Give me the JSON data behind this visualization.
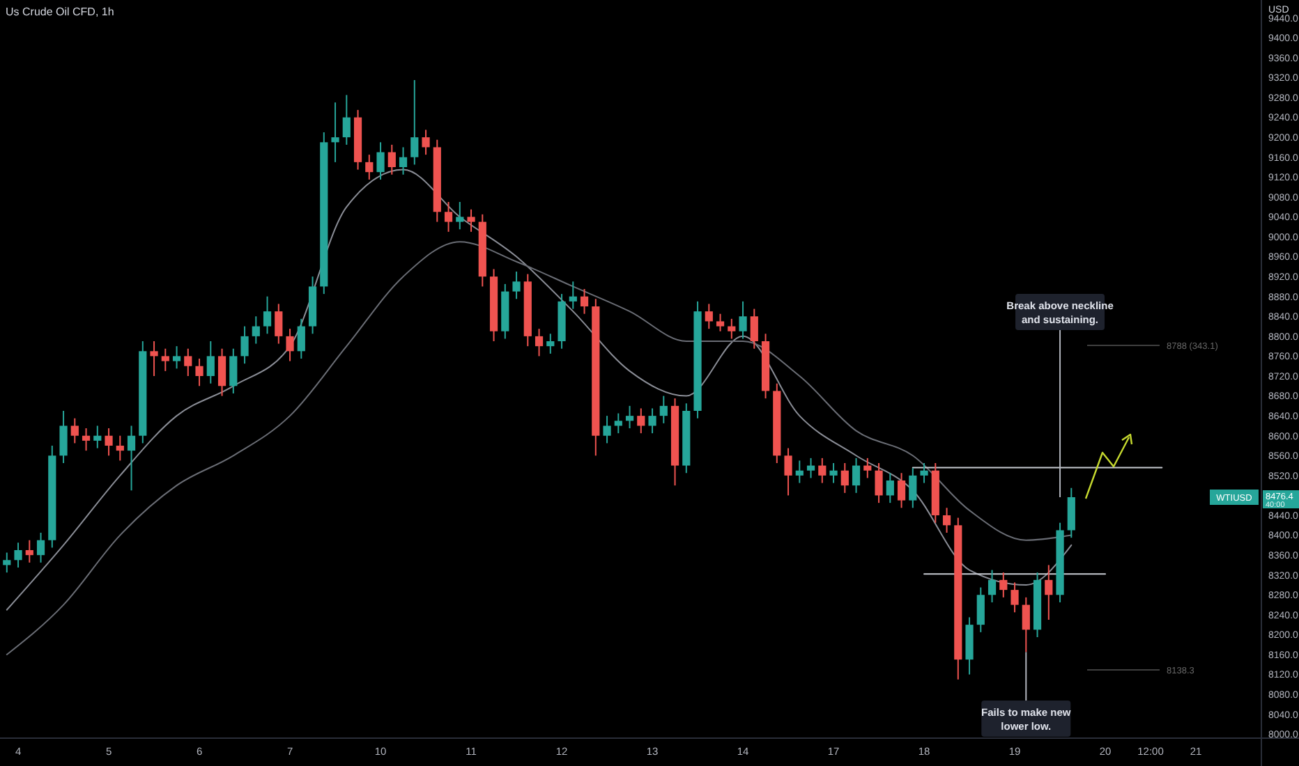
{
  "chart_data": {
    "type": "candlestick",
    "title": "Us Crude Oil CFD, 1h",
    "ylabel": "USD",
    "categories": [
      null,
      "4",
      null,
      null,
      null,
      null,
      null,
      null,
      null,
      "5",
      null,
      null,
      null,
      null,
      null,
      null,
      null,
      "6",
      null,
      null,
      null,
      null,
      null,
      null,
      null,
      "7",
      null,
      null,
      null,
      null,
      null,
      null,
      null,
      "10",
      null,
      null,
      null,
      null,
      null,
      null,
      null,
      "11",
      null,
      null,
      null,
      null,
      null,
      null,
      null,
      "12",
      null,
      null,
      null,
      null,
      null,
      null,
      null,
      "13",
      null,
      null,
      null,
      null,
      null,
      null,
      null,
      "14",
      null,
      null,
      null,
      null,
      null,
      null,
      null,
      "17",
      null,
      null,
      null,
      null,
      null,
      null,
      null,
      "18",
      null,
      null,
      null,
      null,
      null,
      null,
      null,
      "19",
      null,
      null,
      null,
      null,
      null,
      null,
      null,
      "20",
      null,
      null,
      null,
      "12:00",
      null,
      null,
      null,
      "21",
      null,
      null,
      null,
      null,
      null
    ],
    "colors": [
      "#26a69a",
      "#26a69a",
      "#ef5350",
      "#26a69a",
      "#26a69a",
      "#26a69a",
      "#ef5350",
      "#ef5350",
      "#26a69a",
      "#ef5350",
      "#ef5350",
      "#26a69a",
      "#26a69a",
      "#ef5350",
      "#ef5350",
      "#26a69a",
      "#ef5350",
      "#ef5350",
      "#26a69a",
      "#ef5350",
      "#26a69a",
      "#26a69a",
      "#26a69a",
      "#26a69a",
      "#ef5350",
      "#ef5350",
      "#26a69a",
      "#26a69a",
      "#26a69a",
      "#26a69a",
      "#26a69a",
      "#ef5350",
      "#ef5350",
      "#26a69a",
      "#ef5350",
      "#26a69a",
      "#26a69a",
      "#ef5350",
      "#ef5350",
      "#ef5350",
      "#26a69a",
      "#ef5350",
      "#ef5350",
      "#ef5350",
      "#26a69a",
      "#26a69a",
      "#ef5350",
      "#ef5350",
      "#26a69a",
      "#26a69a",
      "#26a69a",
      "#ef5350",
      "#ef5350",
      "#26a69a",
      "#26a69a",
      "#26a69a",
      "#ef5350",
      "#26a69a",
      "#26a69a",
      "#ef5350",
      "#26a69a",
      "#26a69a",
      "#ef5350",
      "#ef5350",
      "#ef5350",
      "#26a69a",
      "#ef5350",
      "#ef5350",
      "#ef5350",
      "#ef5350",
      "#26a69a",
      "#26a69a",
      "#ef5350",
      "#26a69a",
      "#ef5350",
      "#26a69a",
      "#ef5350",
      "#ef5350",
      "#26a69a",
      "#ef5350",
      "#26a69a",
      "#26a69a",
      "#ef5350",
      "#ef5350",
      "#ef5350",
      "#26a69a",
      "#26a69a",
      "#26a69a",
      "#ef5350",
      "#ef5350",
      "#ef5350",
      "#26a69a",
      "#ef5350",
      "#26a69a",
      "#26a69a",
      null,
      null,
      null,
      null,
      null,
      null,
      null,
      null,
      null,
      null,
      null,
      null,
      null,
      null,
      null,
      null
    ],
    "ohlc": [
      [
        8340,
        8365,
        8325,
        8350
      ],
      [
        8350,
        8385,
        8335,
        8370
      ],
      [
        8370,
        8390,
        8345,
        8360
      ],
      [
        8360,
        8405,
        8345,
        8390
      ],
      [
        8390,
        8580,
        8375,
        8560
      ],
      [
        8560,
        8650,
        8545,
        8620
      ],
      [
        8620,
        8635,
        8585,
        8600
      ],
      [
        8600,
        8615,
        8570,
        8590
      ],
      [
        8590,
        8620,
        8575,
        8600
      ],
      [
        8600,
        8615,
        8560,
        8580
      ],
      [
        8580,
        8600,
        8550,
        8570
      ],
      [
        8570,
        8620,
        8490,
        8600
      ],
      [
        8600,
        8790,
        8585,
        8770
      ],
      [
        8770,
        8790,
        8720,
        8760
      ],
      [
        8760,
        8775,
        8730,
        8750
      ],
      [
        8750,
        8780,
        8735,
        8760
      ],
      [
        8760,
        8775,
        8720,
        8740
      ],
      [
        8740,
        8755,
        8700,
        8720
      ],
      [
        8720,
        8790,
        8705,
        8760
      ],
      [
        8760,
        8775,
        8680,
        8700
      ],
      [
        8700,
        8775,
        8685,
        8760
      ],
      [
        8760,
        8820,
        8745,
        8800
      ],
      [
        8800,
        8840,
        8785,
        8820
      ],
      [
        8820,
        8880,
        8805,
        8850
      ],
      [
        8850,
        8865,
        8785,
        8800
      ],
      [
        8800,
        8815,
        8750,
        8770
      ],
      [
        8770,
        8835,
        8755,
        8820
      ],
      [
        8820,
        8920,
        8805,
        8900
      ],
      [
        8900,
        9210,
        8885,
        9190
      ],
      [
        9190,
        9270,
        9150,
        9200
      ],
      [
        9200,
        9285,
        9185,
        9240
      ],
      [
        9240,
        9255,
        9135,
        9150
      ],
      [
        9150,
        9165,
        9115,
        9130
      ],
      [
        9130,
        9190,
        9115,
        9170
      ],
      [
        9170,
        9185,
        9125,
        9140
      ],
      [
        9140,
        9180,
        9125,
        9160
      ],
      [
        9160,
        9315,
        9145,
        9200
      ],
      [
        9200,
        9215,
        9165,
        9180
      ],
      [
        9180,
        9195,
        9030,
        9050
      ],
      [
        9050,
        9070,
        9010,
        9030
      ],
      [
        9030,
        9070,
        9015,
        9040
      ],
      [
        9040,
        9055,
        9010,
        9030
      ],
      [
        9030,
        9045,
        8900,
        8920
      ],
      [
        8920,
        8935,
        8790,
        8810
      ],
      [
        8810,
        8905,
        8795,
        8890
      ],
      [
        8890,
        8930,
        8875,
        8910
      ],
      [
        8910,
        8925,
        8780,
        8800
      ],
      [
        8800,
        8815,
        8760,
        8780
      ],
      [
        8780,
        8805,
        8765,
        8790
      ],
      [
        8790,
        8885,
        8775,
        8870
      ],
      [
        8870,
        8910,
        8855,
        8880
      ],
      [
        8880,
        8895,
        8845,
        8860
      ],
      [
        8860,
        8875,
        8560,
        8600
      ],
      [
        8600,
        8640,
        8585,
        8620
      ],
      [
        8620,
        8645,
        8605,
        8630
      ],
      [
        8630,
        8660,
        8615,
        8640
      ],
      [
        8640,
        8655,
        8605,
        8620
      ],
      [
        8620,
        8655,
        8605,
        8640
      ],
      [
        8640,
        8680,
        8625,
        8660
      ],
      [
        8660,
        8675,
        8500,
        8540
      ],
      [
        8540,
        8665,
        8525,
        8650
      ],
      [
        8650,
        8870,
        8635,
        8850
      ],
      [
        8850,
        8865,
        8815,
        8830
      ],
      [
        8830,
        8845,
        8810,
        8820
      ],
      [
        8820,
        8835,
        8795,
        8810
      ],
      [
        8810,
        8870,
        8795,
        8840
      ],
      [
        8840,
        8855,
        8775,
        8790
      ],
      [
        8790,
        8805,
        8675,
        8690
      ],
      [
        8690,
        8705,
        8545,
        8560
      ],
      [
        8560,
        8575,
        8480,
        8520
      ],
      [
        8520,
        8550,
        8505,
        8530
      ],
      [
        8530,
        8555,
        8515,
        8540
      ],
      [
        8540,
        8555,
        8505,
        8520
      ],
      [
        8520,
        8545,
        8505,
        8530
      ],
      [
        8530,
        8545,
        8485,
        8500
      ],
      [
        8500,
        8555,
        8485,
        8540
      ],
      [
        8540,
        8555,
        8515,
        8530
      ],
      [
        8530,
        8545,
        8465,
        8480
      ],
      [
        8480,
        8525,
        8465,
        8510
      ],
      [
        8510,
        8525,
        8455,
        8470
      ],
      [
        8470,
        8535,
        8455,
        8520
      ],
      [
        8520,
        8545,
        8505,
        8530
      ],
      [
        8530,
        8545,
        8425,
        8440
      ],
      [
        8440,
        8455,
        8405,
        8420
      ],
      [
        8420,
        8435,
        8110,
        8150
      ],
      [
        8150,
        8235,
        8120,
        8220
      ],
      [
        8220,
        8295,
        8205,
        8280
      ],
      [
        8280,
        8330,
        8265,
        8310
      ],
      [
        8310,
        8325,
        8275,
        8290
      ],
      [
        8290,
        8305,
        8245,
        8260
      ],
      [
        8260,
        8275,
        8165,
        8210
      ],
      [
        8210,
        8325,
        8195,
        8310
      ],
      [
        8310,
        8340,
        8230,
        8280
      ],
      [
        8280,
        8425,
        8265,
        8410
      ],
      [
        8410,
        8495,
        8395,
        8476.4
      ],
      null,
      null,
      null,
      null,
      null,
      null,
      null,
      null,
      null,
      null,
      null,
      null,
      null,
      null,
      null,
      null
    ],
    "series": [
      {
        "type": "line",
        "color": "#8a8d96",
        "values": [
          8250,
          null,
          null,
          null,
          null,
          8380,
          null,
          null,
          null,
          null,
          8520,
          null,
          null,
          null,
          null,
          8640,
          null,
          null,
          null,
          null,
          8700,
          null,
          null,
          null,
          null,
          8780,
          null,
          null,
          null,
          null,
          9060,
          null,
          null,
          null,
          null,
          9135,
          null,
          null,
          null,
          null,
          9040,
          null,
          null,
          null,
          null,
          8960,
          null,
          null,
          null,
          null,
          8850,
          null,
          null,
          null,
          null,
          8730,
          null,
          null,
          null,
          null,
          8680,
          null,
          null,
          null,
          null,
          8800,
          null,
          null,
          null,
          null,
          8640,
          null,
          null,
          null,
          null,
          8560,
          null,
          null,
          null,
          null,
          8490,
          null,
          null,
          null,
          null,
          8330,
          null,
          null,
          null,
          null,
          8300,
          null,
          null,
          null,
          8380,
          null,
          null,
          null,
          null,
          null,
          null,
          null,
          null,
          null,
          null,
          null,
          null,
          null,
          null,
          null,
          null
        ]
      },
      {
        "type": "line",
        "color": "#6a6d75",
        "values": [
          8160,
          null,
          null,
          null,
          null,
          8260,
          null,
          null,
          null,
          null,
          8400,
          null,
          null,
          null,
          null,
          8500,
          null,
          null,
          null,
          null,
          8560,
          null,
          null,
          null,
          null,
          8640,
          null,
          null,
          null,
          null,
          8780,
          null,
          null,
          null,
          null,
          8920,
          null,
          null,
          null,
          null,
          8990,
          null,
          null,
          null,
          null,
          8950,
          null,
          null,
          null,
          null,
          8900,
          null,
          null,
          null,
          null,
          8850,
          null,
          null,
          null,
          null,
          8790,
          null,
          null,
          null,
          null,
          8790,
          null,
          null,
          null,
          null,
          8720,
          null,
          null,
          null,
          null,
          8610,
          null,
          null,
          null,
          null,
          8560,
          null,
          null,
          null,
          null,
          8450,
          null,
          null,
          null,
          null,
          8390,
          null,
          null,
          null,
          8400,
          null,
          null,
          null,
          null,
          null,
          null,
          null,
          null,
          null,
          null,
          null,
          null,
          null,
          null,
          null,
          null
        ]
      },
      {
        "type": "line",
        "color": "#c8cbd2",
        "values": [
          null,
          null,
          null,
          null,
          null,
          null,
          null,
          null,
          null,
          null,
          null,
          null,
          null,
          null,
          null,
          null,
          null,
          null,
          null,
          null,
          null,
          null,
          null,
          null,
          null,
          null,
          null,
          null,
          null,
          null,
          null,
          null,
          null,
          null,
          null,
          null,
          null,
          null,
          null,
          null,
          null,
          null,
          null,
          null,
          null,
          null,
          null,
          null,
          null,
          null,
          null,
          null,
          null,
          null,
          null,
          null,
          null,
          null,
          null,
          null,
          null,
          null,
          null,
          null,
          null,
          null,
          null,
          null,
          null,
          null,
          null,
          null,
          null,
          null,
          null,
          null,
          null,
          null,
          null,
          null,
          8536,
          null,
          null,
          null,
          null,
          null,
          null,
          null,
          null,
          null,
          null,
          null,
          null,
          null,
          null,
          null,
          null,
          null,
          null,
          null,
          null,
          null,
          8536,
          null,
          null,
          null,
          null,
          null,
          null,
          null,
          null
        ]
      },
      {
        "type": "line",
        "color": "#c8cbd2",
        "values": [
          null,
          null,
          null,
          null,
          null,
          null,
          null,
          null,
          null,
          null,
          null,
          null,
          null,
          null,
          null,
          null,
          null,
          null,
          null,
          null,
          null,
          null,
          null,
          null,
          null,
          null,
          null,
          null,
          null,
          null,
          null,
          null,
          null,
          null,
          null,
          null,
          null,
          null,
          null,
          null,
          null,
          null,
          null,
          null,
          null,
          null,
          null,
          null,
          null,
          null,
          null,
          null,
          null,
          null,
          null,
          null,
          null,
          null,
          null,
          null,
          null,
          null,
          null,
          null,
          null,
          null,
          null,
          null,
          null,
          null,
          null,
          null,
          null,
          null,
          null,
          null,
          null,
          null,
          null,
          null,
          null,
          8322,
          null,
          null,
          null,
          null,
          null,
          null,
          null,
          null,
          null,
          null,
          null,
          null,
          null,
          null,
          null,
          8322,
          null,
          null,
          null,
          null,
          null,
          null,
          null,
          null,
          null,
          null,
          null,
          null,
          null
        ]
      }
    ],
    "ylim": [
      7992,
      9476
    ],
    "yticks": [
      {
        "value": 8000,
        "label": "8000.0"
      },
      {
        "value": 8040,
        "label": "8040.0"
      },
      {
        "value": 8080,
        "label": "8080.0"
      },
      {
        "value": 8120,
        "label": "8120.0"
      },
      {
        "value": 8160,
        "label": "8160.0"
      },
      {
        "value": 8200,
        "label": "8200.0"
      },
      {
        "value": 8240,
        "label": "8240.0"
      },
      {
        "value": 8280,
        "label": "8280.0"
      },
      {
        "value": 8320,
        "label": "8320.0"
      },
      {
        "value": 8360,
        "label": "8360.0"
      },
      {
        "value": 8400,
        "label": "8400.0"
      },
      {
        "value": 8440,
        "label": "8440.0"
      },
      {
        "value": 8520,
        "label": "8520.0"
      },
      {
        "value": 8560,
        "label": "8560.0"
      },
      {
        "value": 8600,
        "label": "8600.0"
      },
      {
        "value": 8640,
        "label": "8640.0"
      },
      {
        "value": 8680,
        "label": "8680.0"
      },
      {
        "value": 8720,
        "label": "8720.0"
      },
      {
        "value": 8760,
        "label": "8760.0"
      },
      {
        "value": 8800,
        "label": "8800.0"
      },
      {
        "value": 8840,
        "label": "8840.0"
      },
      {
        "value": 8880,
        "label": "8880.0"
      },
      {
        "value": 8920,
        "label": "8920.0"
      },
      {
        "value": 8960,
        "label": "8960.0"
      },
      {
        "value": 9000,
        "label": "9000.0"
      },
      {
        "value": 9040,
        "label": "9040.0"
      },
      {
        "value": 9080,
        "label": "9080.0"
      },
      {
        "value": 9120,
        "label": "9120.0"
      },
      {
        "value": 9160,
        "label": "9160.0"
      },
      {
        "value": 9200,
        "label": "9200.0"
      },
      {
        "value": 9240,
        "label": "9240.0"
      },
      {
        "value": 9280,
        "label": "9280.0"
      },
      {
        "value": 9320,
        "label": "9320.0"
      },
      {
        "value": 9360,
        "label": "9360.0"
      },
      {
        "value": 9400,
        "label": "9400.0"
      },
      {
        "value": 9440,
        "label": "9440.0"
      }
    ],
    "annotations": [
      "Break above neckline and sustaining.",
      {
        "text": "Fails to make new lower low.",
        "y": 8165
      },
      "8788 (343.1)",
      "8138.3",
      "WTIUSD",
      "8476.4",
      "40:00"
    ]
  }
}
